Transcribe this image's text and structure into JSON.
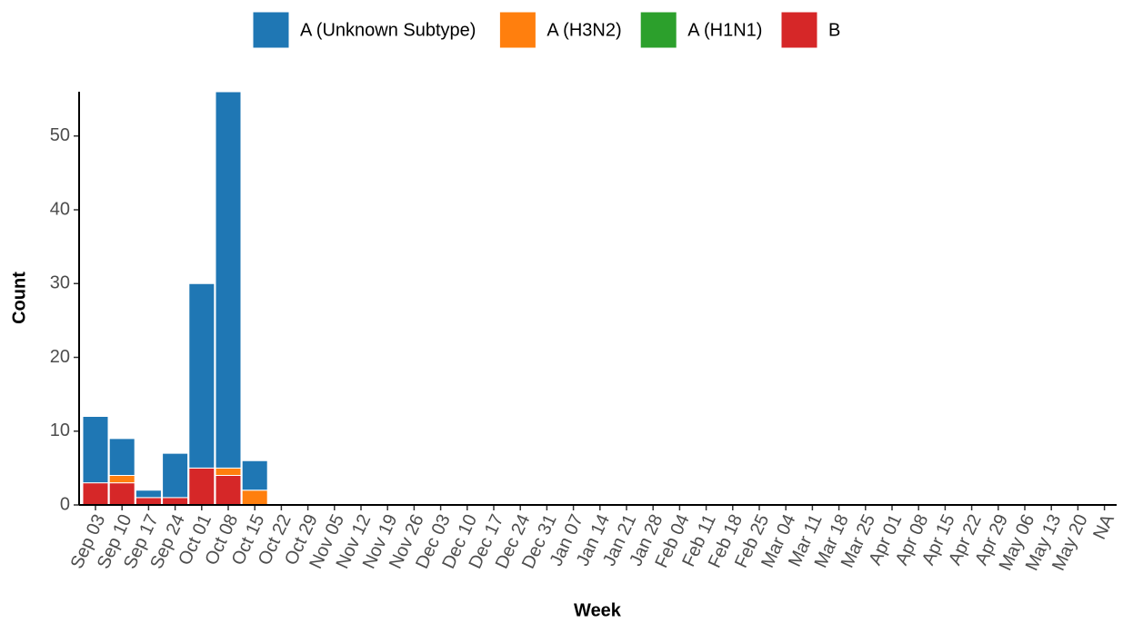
{
  "chart_data": {
    "type": "stacked-bar",
    "x_label": "Week",
    "y_label": "Count",
    "categories": [
      "Sep 03",
      "Sep 10",
      "Sep 17",
      "Sep 24",
      "Oct 01",
      "Oct 08",
      "Oct 15",
      "Oct 22",
      "Oct 29",
      "Nov 05",
      "Nov 12",
      "Nov 19",
      "Nov 26",
      "Dec 03",
      "Dec 10",
      "Dec 17",
      "Dec 24",
      "Dec 31",
      "Jan 07",
      "Jan 14",
      "Jan 21",
      "Jan 28",
      "Feb 04",
      "Feb 11",
      "Feb 18",
      "Feb 25",
      "Mar 04",
      "Mar 11",
      "Mar 18",
      "Mar 25",
      "Apr 01",
      "Apr 08",
      "Apr 15",
      "Apr 22",
      "Apr 29",
      "May 06",
      "May 13",
      "May 20",
      "NA"
    ],
    "series": [
      {
        "name": "A (Unknown Subtype)",
        "color": "#1f77b4",
        "values": [
          9,
          5,
          1,
          6,
          25,
          51,
          4,
          0,
          0,
          0,
          0,
          0,
          0,
          0,
          0,
          0,
          0,
          0,
          0,
          0,
          0,
          0,
          0,
          0,
          0,
          0,
          0,
          0,
          0,
          0,
          0,
          0,
          0,
          0,
          0,
          0,
          0,
          0,
          0
        ]
      },
      {
        "name": "A (H3N2)",
        "color": "#ff7f0e",
        "values": [
          0,
          1,
          0,
          0,
          0,
          1,
          2,
          0,
          0,
          0,
          0,
          0,
          0,
          0,
          0,
          0,
          0,
          0,
          0,
          0,
          0,
          0,
          0,
          0,
          0,
          0,
          0,
          0,
          0,
          0,
          0,
          0,
          0,
          0,
          0,
          0,
          0,
          0,
          0
        ]
      },
      {
        "name": "A (H1N1)",
        "color": "#2ca02c",
        "values": [
          0,
          0,
          0,
          0,
          0,
          0,
          0,
          0,
          0,
          0,
          0,
          0,
          0,
          0,
          0,
          0,
          0,
          0,
          0,
          0,
          0,
          0,
          0,
          0,
          0,
          0,
          0,
          0,
          0,
          0,
          0,
          0,
          0,
          0,
          0,
          0,
          0,
          0,
          0
        ]
      },
      {
        "name": "B",
        "color": "#d62728",
        "values": [
          3,
          3,
          1,
          1,
          5,
          4,
          0,
          0,
          0,
          0,
          0,
          0,
          0,
          0,
          0,
          0,
          0,
          0,
          0,
          0,
          0,
          0,
          0,
          0,
          0,
          0,
          0,
          0,
          0,
          0,
          0,
          0,
          0,
          0,
          0,
          0,
          0,
          0,
          0
        ]
      }
    ],
    "ylim": [
      0,
      56
    ],
    "yticks": [
      0,
      10,
      20,
      30,
      40,
      50
    ],
    "legend": "top"
  }
}
